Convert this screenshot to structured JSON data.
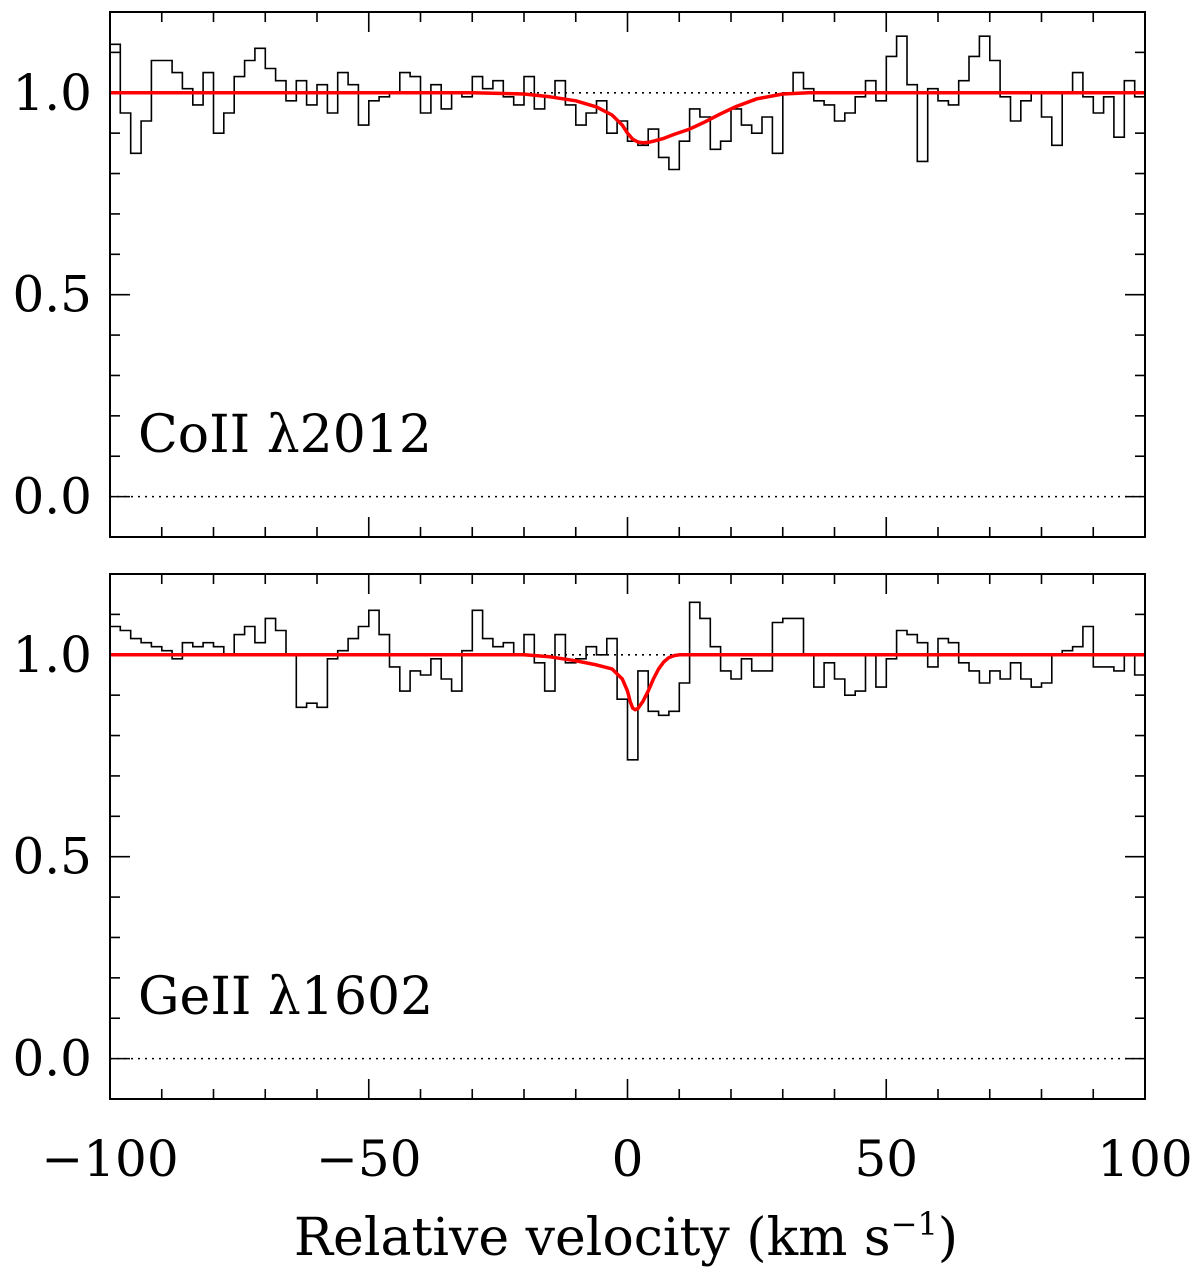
{
  "chart_data": {
    "type": "line",
    "x_axis": {
      "label": "Relative velocity (km s",
      "label_sup": "−1",
      "label_close": ")",
      "range": [
        -100,
        100
      ],
      "major_ticks": [
        -100,
        -50,
        0,
        50,
        100
      ],
      "tick_labels": [
        "−100",
        "−50",
        "0",
        "50",
        "100"
      ],
      "minor_step": 10
    },
    "y_axis": {
      "range": [
        -0.1,
        1.2
      ],
      "major_ticks": [
        0.0,
        0.5,
        1.0
      ],
      "tick_labels": [
        "0.0",
        "0.5",
        "1.0"
      ],
      "minor_step": 0.1
    },
    "reference_lines": [
      0.0,
      1.0
    ],
    "colors": {
      "data": "#000000",
      "model": "#ff0000",
      "reference": "#000000"
    },
    "panels": [
      {
        "label": "CoII λ2012",
        "series": [
          {
            "kind": "histogram",
            "x": [
              -100,
              -98,
              -96,
              -94,
              -92,
              -90,
              -88,
              -86,
              -84,
              -82,
              -80,
              -78,
              -76,
              -74,
              -72,
              -70,
              -68,
              -66,
              -64,
              -62,
              -60,
              -58,
              -56,
              -54,
              -52,
              -50,
              -48,
              -46,
              -44,
              -42,
              -40,
              -38,
              -36,
              -34,
              -32,
              -30,
              -28,
              -26,
              -24,
              -22,
              -20,
              -18,
              -16,
              -14,
              -12,
              -10,
              -8,
              -6,
              -4,
              -2,
              0,
              2,
              4,
              6,
              8,
              10,
              12,
              14,
              16,
              18,
              20,
              22,
              24,
              26,
              28,
              30,
              32,
              34,
              36,
              38,
              40,
              42,
              44,
              46,
              48,
              50,
              52,
              54,
              56,
              58,
              60,
              62,
              64,
              66,
              68,
              70,
              72,
              74,
              76,
              78,
              80,
              82,
              84,
              86,
              88,
              90,
              92,
              94,
              96,
              98
            ],
            "y": [
              1.12,
              0.95,
              0.85,
              0.93,
              1.08,
              1.08,
              1.05,
              1.01,
              0.97,
              1.05,
              0.9,
              0.95,
              1.04,
              1.08,
              1.11,
              1.06,
              1.03,
              0.98,
              1.03,
              0.97,
              1.02,
              0.95,
              1.05,
              1.02,
              0.92,
              0.98,
              0.99,
              1.0,
              1.05,
              1.04,
              0.95,
              1.02,
              0.96,
              1.0,
              0.99,
              1.04,
              1.01,
              1.03,
              0.99,
              0.97,
              1.04,
              0.96,
              0.99,
              1.03,
              0.97,
              0.92,
              0.95,
              0.98,
              0.9,
              0.93,
              0.88,
              0.87,
              0.91,
              0.84,
              0.81,
              0.88,
              0.96,
              0.94,
              0.86,
              0.88,
              0.96,
              0.92,
              0.9,
              0.94,
              0.85,
              1.0,
              1.05,
              1.01,
              0.98,
              0.97,
              0.93,
              0.95,
              0.99,
              1.03,
              0.98,
              1.09,
              1.14,
              1.02,
              0.83,
              1.01,
              0.98,
              0.97,
              1.03,
              1.09,
              1.14,
              1.08,
              0.99,
              0.93,
              0.98,
              1.0,
              0.94,
              0.87,
              1.0,
              1.05,
              0.99,
              0.95,
              0.99,
              0.89,
              1.03,
              0.99
            ]
          },
          {
            "kind": "model",
            "x": [
              -100,
              -30,
              -20,
              -15,
              -10,
              -6,
              -3,
              -1,
              0,
              1,
              2,
              3,
              4,
              5,
              7,
              9,
              12,
              15,
              18,
              21,
              25,
              30,
              35,
              100
            ],
            "y": [
              1.0,
              1.0,
              0.997,
              0.99,
              0.98,
              0.965,
              0.945,
              0.92,
              0.9,
              0.885,
              0.878,
              0.876,
              0.877,
              0.88,
              0.887,
              0.897,
              0.91,
              0.928,
              0.948,
              0.966,
              0.985,
              0.997,
              1.0,
              1.0
            ]
          }
        ]
      },
      {
        "label": "GeII λ1602",
        "series": [
          {
            "kind": "histogram",
            "x": [
              -100,
              -98,
              -96,
              -94,
              -92,
              -90,
              -88,
              -86,
              -84,
              -82,
              -80,
              -78,
              -76,
              -74,
              -72,
              -70,
              -68,
              -66,
              -64,
              -62,
              -60,
              -58,
              -56,
              -54,
              -52,
              -50,
              -48,
              -46,
              -44,
              -42,
              -40,
              -38,
              -36,
              -34,
              -32,
              -30,
              -28,
              -26,
              -24,
              -22,
              -20,
              -18,
              -16,
              -14,
              -12,
              -10,
              -8,
              -6,
              -4,
              -2,
              0,
              2,
              4,
              6,
              8,
              10,
              12,
              14,
              16,
              18,
              20,
              22,
              24,
              26,
              28,
              30,
              32,
              34,
              36,
              38,
              40,
              42,
              44,
              46,
              48,
              50,
              52,
              54,
              56,
              58,
              60,
              62,
              64,
              66,
              68,
              70,
              72,
              74,
              76,
              78,
              80,
              82,
              84,
              86,
              88,
              90,
              92,
              94,
              96,
              98
            ],
            "y": [
              1.07,
              1.06,
              1.04,
              1.03,
              1.02,
              1.01,
              0.99,
              1.03,
              1.02,
              1.03,
              1.02,
              1.0,
              1.05,
              1.07,
              1.03,
              1.09,
              1.06,
              1.0,
              0.87,
              0.88,
              0.87,
              0.99,
              1.01,
              1.04,
              1.07,
              1.11,
              1.05,
              0.97,
              0.91,
              0.96,
              0.95,
              0.99,
              0.94,
              0.91,
              1.01,
              1.11,
              1.04,
              1.02,
              1.03,
              1.0,
              1.05,
              0.98,
              0.91,
              1.05,
              0.98,
              0.99,
              1.02,
              1.0,
              1.04,
              0.89,
              0.74,
              0.96,
              0.86,
              0.85,
              0.86,
              0.93,
              1.13,
              1.09,
              1.02,
              0.96,
              0.94,
              0.99,
              0.96,
              0.96,
              1.08,
              1.09,
              1.09,
              1.0,
              0.92,
              0.98,
              0.94,
              0.9,
              0.91,
              1.0,
              0.92,
              0.99,
              1.06,
              1.05,
              1.03,
              0.97,
              1.04,
              1.03,
              0.98,
              0.96,
              0.93,
              0.96,
              0.94,
              0.98,
              0.94,
              0.92,
              0.93,
              1.0,
              1.01,
              1.02,
              1.07,
              0.97,
              0.97,
              0.96,
              1.0,
              0.95
            ]
          },
          {
            "kind": "model",
            "x": [
              -100,
              -20,
              -15,
              -10,
              -6,
              -3,
              -1,
              0,
              0.5,
              1,
              1.5,
              2,
              3,
              4,
              5,
              6,
              7,
              8,
              9,
              10,
              100
            ],
            "y": [
              1.0,
              1.0,
              0.995,
              0.985,
              0.975,
              0.965,
              0.94,
              0.91,
              0.885,
              0.868,
              0.864,
              0.867,
              0.885,
              0.91,
              0.94,
              0.965,
              0.982,
              0.993,
              0.998,
              1.0,
              1.0
            ]
          }
        ]
      }
    ]
  }
}
